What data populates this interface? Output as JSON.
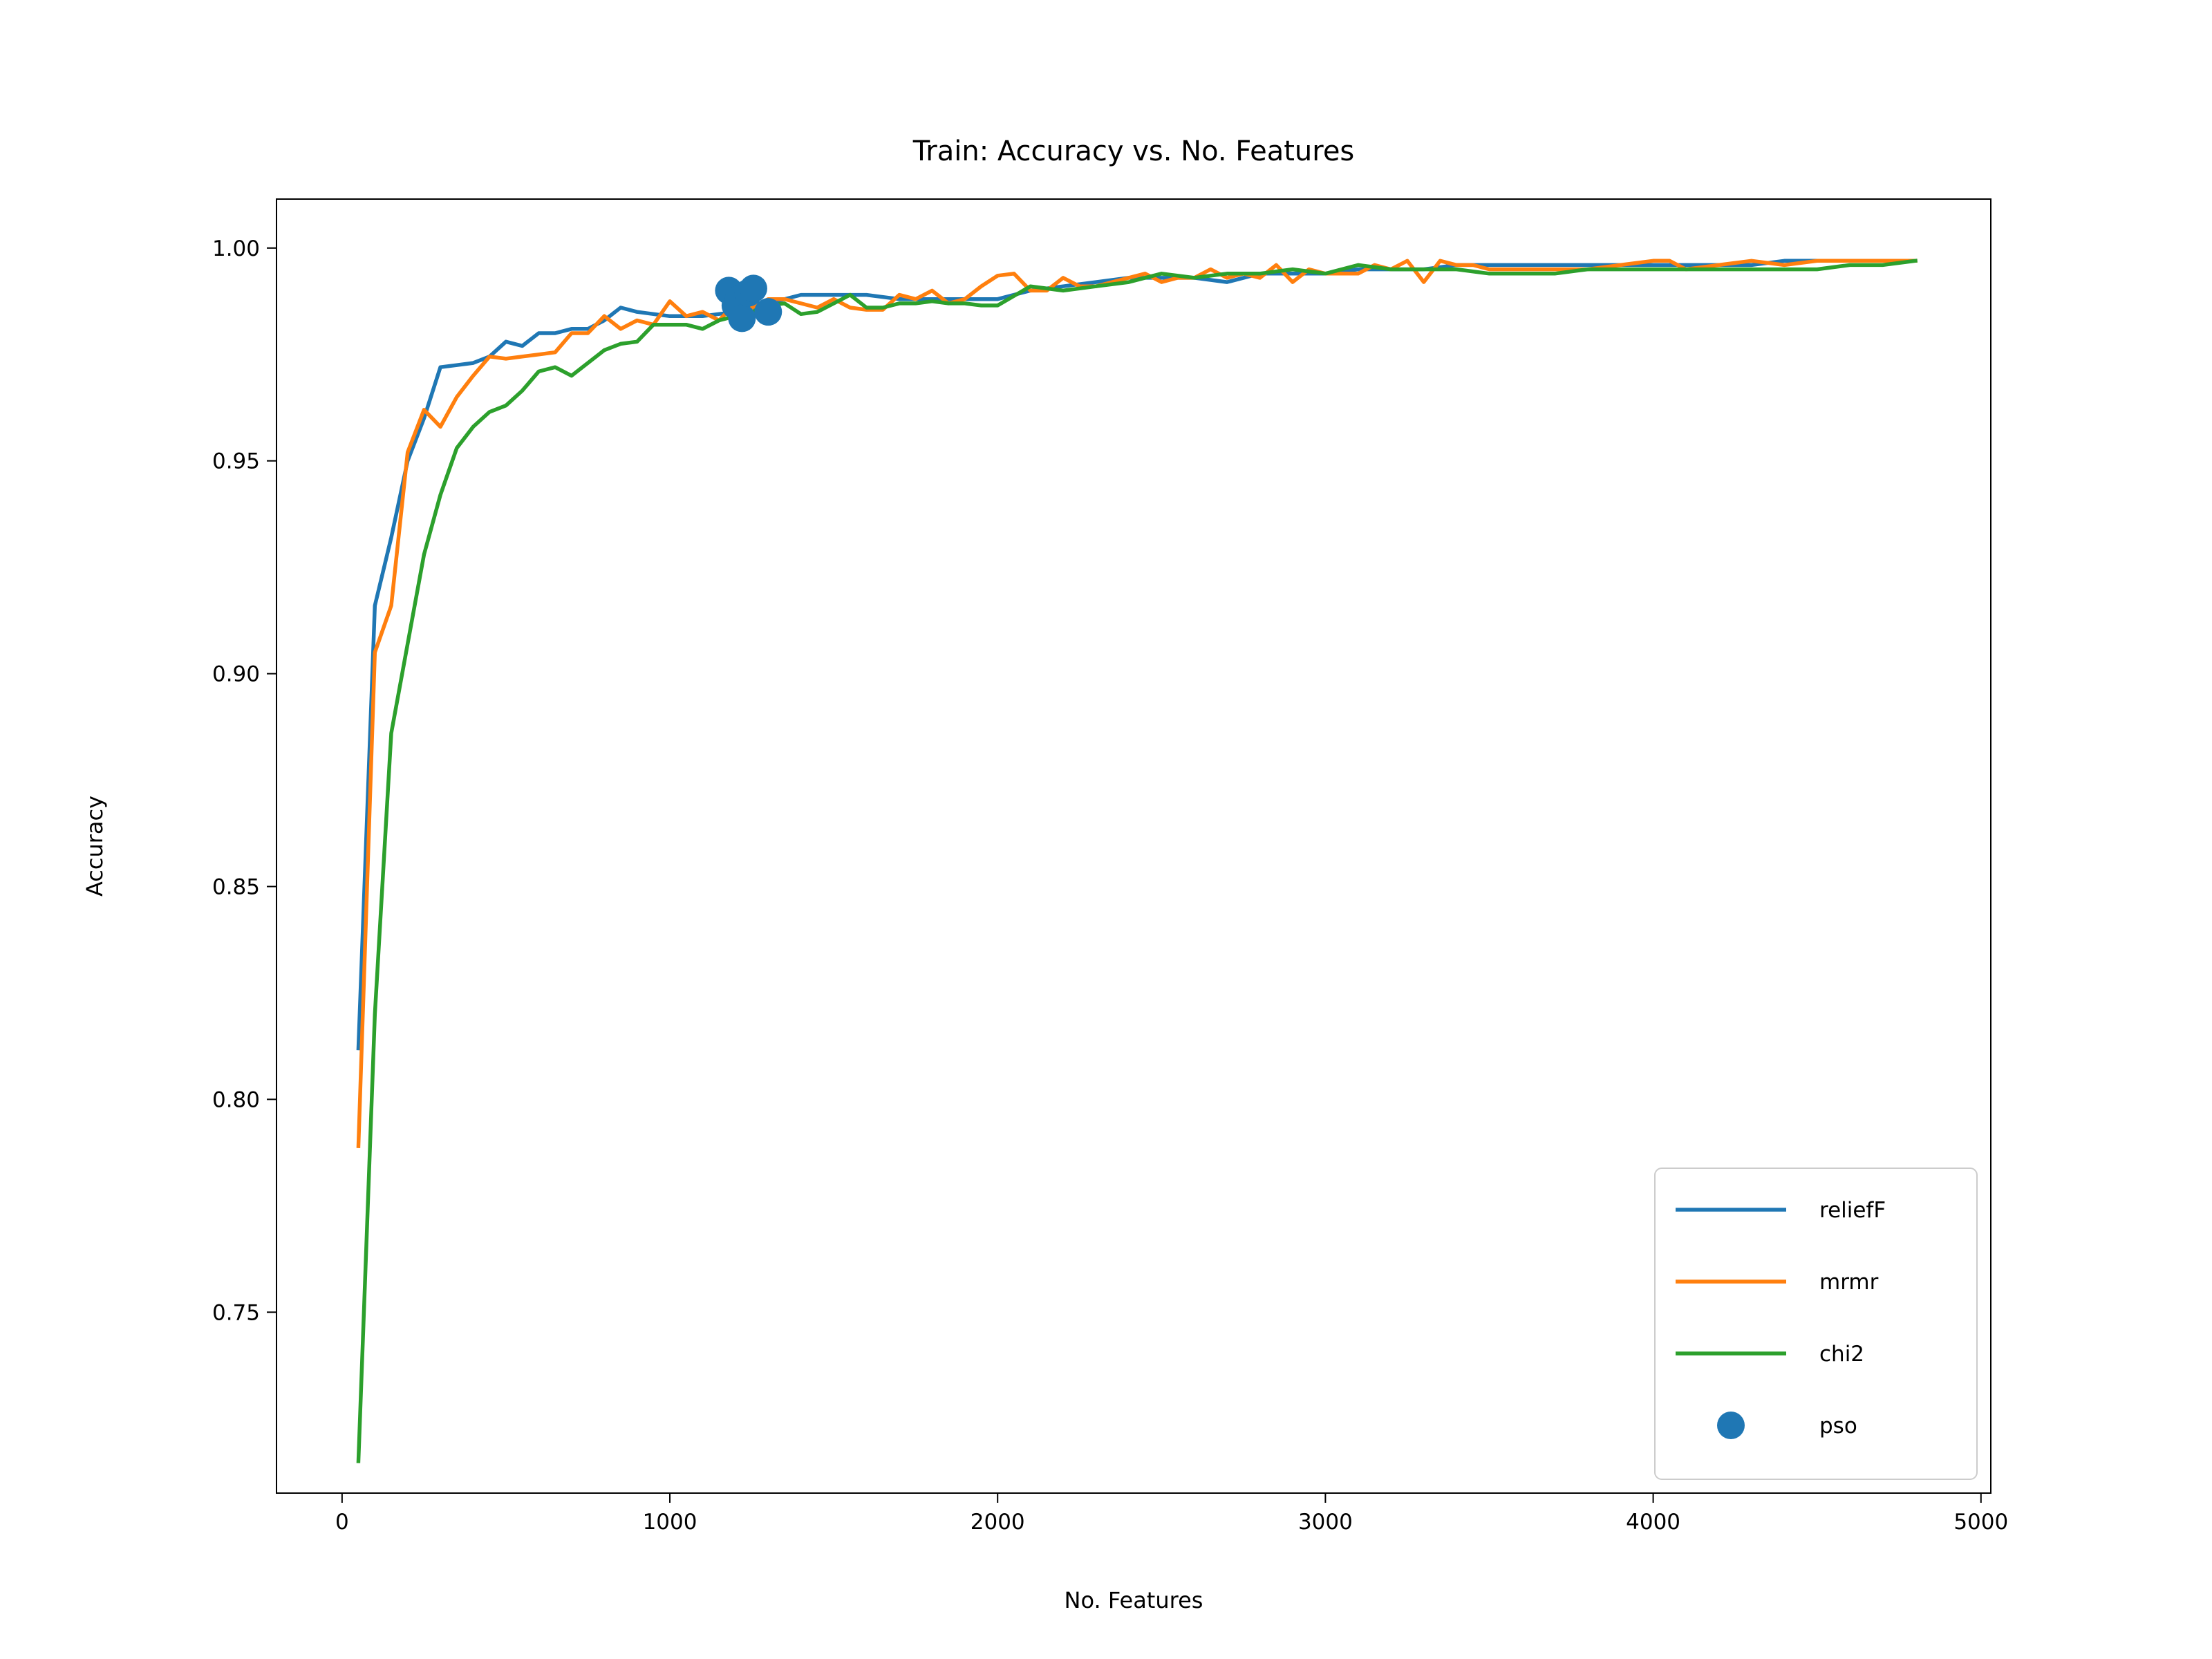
{
  "chart_data": {
    "type": "line",
    "title": "Train: Accuracy vs. No. Features",
    "xlabel": "No. Features",
    "ylabel": "Accuracy",
    "xlim": [
      -200,
      5030
    ],
    "ylim": [
      0.7075,
      1.0115
    ],
    "xticks": [
      0,
      1000,
      2000,
      3000,
      4000,
      5000
    ],
    "yticks": [
      0.75,
      0.8,
      0.85,
      0.9,
      0.95,
      1.0
    ],
    "xtick_labels": [
      "0",
      "1000",
      "2000",
      "3000",
      "4000",
      "5000"
    ],
    "ytick_labels": [
      "0.75",
      "0.80",
      "0.85",
      "0.90",
      "0.95",
      "1.00"
    ],
    "grid": false,
    "legend_position": "lower-right",
    "series": [
      {
        "name": "reliefF",
        "kind": "line",
        "color": "#1f77b4",
        "x": [
          50,
          100,
          150,
          200,
          250,
          300,
          350,
          400,
          450,
          500,
          550,
          600,
          650,
          700,
          750,
          800,
          850,
          900,
          950,
          1000,
          1100,
          1200,
          1300,
          1400,
          1500,
          1600,
          1700,
          1800,
          1900,
          2000,
          2100,
          2200,
          2300,
          2400,
          2500,
          2600,
          2700,
          2800,
          2900,
          3000,
          3100,
          3200,
          3300,
          3400,
          3500,
          3600,
          3700,
          3800,
          3900,
          4000,
          4100,
          4200,
          4300,
          4400,
          4500,
          4600,
          4700,
          4800
        ],
        "y": [
          0.812,
          0.916,
          0.932,
          0.95,
          0.96,
          0.972,
          0.9725,
          0.973,
          0.9745,
          0.978,
          0.977,
          0.98,
          0.98,
          0.981,
          0.981,
          0.983,
          0.986,
          0.985,
          0.9845,
          0.984,
          0.984,
          0.985,
          0.987,
          0.989,
          0.989,
          0.989,
          0.988,
          0.988,
          0.988,
          0.988,
          0.99,
          0.991,
          0.992,
          0.993,
          0.993,
          0.993,
          0.992,
          0.994,
          0.994,
          0.994,
          0.995,
          0.995,
          0.995,
          0.996,
          0.996,
          0.996,
          0.996,
          0.996,
          0.996,
          0.996,
          0.996,
          0.996,
          0.996,
          0.997,
          0.997,
          0.997,
          0.997,
          0.997
        ]
      },
      {
        "name": "mrmr",
        "kind": "line",
        "color": "#ff7f0e",
        "x": [
          50,
          100,
          150,
          200,
          250,
          300,
          350,
          400,
          450,
          500,
          550,
          600,
          650,
          700,
          750,
          800,
          850,
          900,
          950,
          1000,
          1050,
          1100,
          1150,
          1200,
          1250,
          1300,
          1350,
          1400,
          1450,
          1500,
          1550,
          1600,
          1650,
          1700,
          1750,
          1800,
          1850,
          1900,
          1950,
          2000,
          2050,
          2100,
          2150,
          2200,
          2250,
          2300,
          2350,
          2400,
          2450,
          2500,
          2550,
          2600,
          2650,
          2700,
          2750,
          2800,
          2850,
          2900,
          2950,
          3000,
          3050,
          3100,
          3150,
          3200,
          3250,
          3300,
          3350,
          3400,
          3450,
          3500,
          3550,
          3600,
          3700,
          3800,
          3900,
          4000,
          4050,
          4100,
          4200,
          4300,
          4400,
          4500,
          4600,
          4700,
          4800
        ],
        "y": [
          0.789,
          0.905,
          0.916,
          0.952,
          0.962,
          0.958,
          0.965,
          0.97,
          0.9745,
          0.974,
          0.9745,
          0.975,
          0.9755,
          0.98,
          0.98,
          0.984,
          0.981,
          0.983,
          0.982,
          0.9875,
          0.984,
          0.985,
          0.983,
          0.987,
          0.986,
          0.988,
          0.988,
          0.987,
          0.986,
          0.988,
          0.986,
          0.9855,
          0.9855,
          0.989,
          0.988,
          0.99,
          0.987,
          0.988,
          0.991,
          0.9935,
          0.994,
          0.99,
          0.99,
          0.993,
          0.991,
          0.991,
          0.992,
          0.993,
          0.994,
          0.992,
          0.993,
          0.993,
          0.995,
          0.993,
          0.994,
          0.993,
          0.996,
          0.992,
          0.995,
          0.994,
          0.994,
          0.994,
          0.996,
          0.995,
          0.997,
          0.992,
          0.997,
          0.996,
          0.996,
          0.995,
          0.995,
          0.995,
          0.995,
          0.995,
          0.996,
          0.997,
          0.997,
          0.995,
          0.996,
          0.997,
          0.996,
          0.997,
          0.997,
          0.997,
          0.997
        ]
      },
      {
        "name": "chi2",
        "kind": "line",
        "color": "#2ca02c",
        "x": [
          50,
          100,
          150,
          200,
          250,
          300,
          350,
          400,
          450,
          500,
          550,
          600,
          650,
          700,
          750,
          800,
          850,
          900,
          950,
          1000,
          1050,
          1100,
          1150,
          1200,
          1250,
          1300,
          1350,
          1400,
          1450,
          1500,
          1550,
          1600,
          1650,
          1700,
          1750,
          1800,
          1850,
          1900,
          1950,
          2000,
          2100,
          2200,
          2300,
          2400,
          2500,
          2600,
          2700,
          2800,
          2900,
          3000,
          3100,
          3200,
          3300,
          3400,
          3500,
          3600,
          3700,
          3800,
          3900,
          4000,
          4100,
          4200,
          4300,
          4400,
          4500,
          4600,
          4700,
          4800
        ],
        "y": [
          0.715,
          0.82,
          0.886,
          0.907,
          0.928,
          0.942,
          0.953,
          0.958,
          0.9615,
          0.963,
          0.9665,
          0.971,
          0.972,
          0.97,
          0.973,
          0.976,
          0.9775,
          0.978,
          0.982,
          0.982,
          0.982,
          0.981,
          0.983,
          0.984,
          0.985,
          0.9865,
          0.987,
          0.9845,
          0.985,
          0.987,
          0.989,
          0.986,
          0.986,
          0.987,
          0.987,
          0.9875,
          0.987,
          0.987,
          0.9865,
          0.9865,
          0.991,
          0.99,
          0.991,
          0.992,
          0.994,
          0.993,
          0.994,
          0.994,
          0.995,
          0.994,
          0.996,
          0.995,
          0.995,
          0.995,
          0.994,
          0.994,
          0.994,
          0.995,
          0.995,
          0.995,
          0.995,
          0.995,
          0.995,
          0.995,
          0.995,
          0.996,
          0.996,
          0.997
        ]
      },
      {
        "name": "pso",
        "kind": "scatter",
        "color": "#1f77b4",
        "x": [
          1180,
          1200,
          1210,
          1220,
          1240,
          1255,
          1300
        ],
        "y": [
          0.99,
          0.9865,
          0.988,
          0.9835,
          0.9895,
          0.9905,
          0.985
        ]
      }
    ]
  }
}
